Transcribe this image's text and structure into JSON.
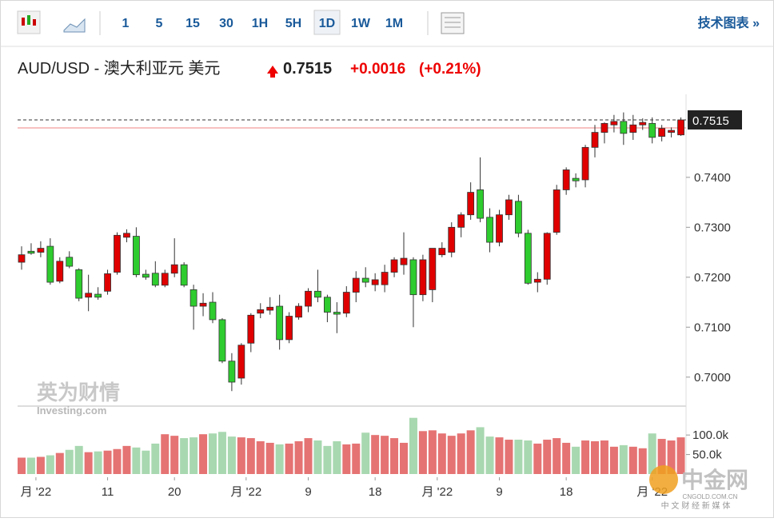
{
  "toolbar": {
    "intervals": [
      "1",
      "5",
      "15",
      "30",
      "1H",
      "5H",
      "1D",
      "1W",
      "1M"
    ],
    "active": "1D",
    "link": "技术图表 »"
  },
  "header": {
    "title": "AUD/USD - 澳大利亚元 美元",
    "change": "+0.0016",
    "change_pct": "(+0.21%)"
  },
  "watermark": {
    "brand": "英为财情",
    "site": "Investing.com"
  },
  "logo": {
    "name": "中金网",
    "domain": "CNGOLD.COM.CN",
    "slogan": "中 文 财 经 新 媒 体"
  },
  "chart_data": {
    "type": "candlestick",
    "current_price": 0.7515,
    "reference_line": 0.7499,
    "up_color": "#e00000",
    "down_color": "#2ecc2e",
    "volume_up_color": "#e57373",
    "volume_down_color": "#a8d8b0",
    "ylim": [
      0.6942,
      0.7563
    ],
    "yticks": [
      {
        "value": 0.74,
        "label": "0.7400"
      },
      {
        "value": 0.73,
        "label": "0.7300"
      },
      {
        "value": 0.72,
        "label": "0.7200"
      },
      {
        "value": 0.71,
        "label": "0.7100"
      },
      {
        "value": 0.7,
        "label": "0.7000"
      }
    ],
    "volume_ylim": [
      0,
      170000
    ],
    "volume_ticks": [
      {
        "value": 100000,
        "label": "100.0k"
      },
      {
        "value": 50000,
        "label": "50.0k"
      }
    ],
    "xticks": [
      {
        "value": 1.5,
        "label": "月 '22"
      },
      {
        "value": 9,
        "label": "11"
      },
      {
        "value": 16,
        "label": "20"
      },
      {
        "value": 23.5,
        "label": "月 '22"
      },
      {
        "value": 30,
        "label": "9"
      },
      {
        "value": 37,
        "label": "18"
      },
      {
        "value": 43.5,
        "label": "月 '22"
      },
      {
        "value": 50,
        "label": "9"
      },
      {
        "value": 57,
        "label": "18"
      },
      {
        "value": 66,
        "label": "月 '22"
      }
    ],
    "open": [
      0.723,
      0.7252,
      0.725,
      0.7262,
      0.7192,
      0.724,
      0.7215,
      0.716,
      0.7166,
      0.7172,
      0.721,
      0.728,
      0.7282,
      0.7206,
      0.7208,
      0.7184,
      0.7208,
      0.7225,
      0.7175,
      0.7142,
      0.715,
      0.7115,
      0.7032,
      0.6998,
      0.7068,
      0.7128,
      0.7134,
      0.7142,
      0.7075,
      0.712,
      0.7142,
      0.7172,
      0.716,
      0.713,
      0.7128,
      0.717,
      0.7198,
      0.7185,
      0.7185,
      0.721,
      0.7225,
      0.7235,
      0.7165,
      0.7175,
      0.7245,
      0.725,
      0.73,
      0.7325,
      0.7375,
      0.732,
      0.727,
      0.7325,
      0.7352,
      0.7288,
      0.719,
      0.7196,
      0.729,
      0.7375,
      0.7398,
      0.7395,
      0.746,
      0.749,
      0.7505,
      0.7512,
      0.749,
      0.7505,
      0.7508,
      0.7482,
      0.749,
      0.7485
    ],
    "high": [
      0.7262,
      0.7268,
      0.7272,
      0.7278,
      0.724,
      0.7252,
      0.7218,
      0.7205,
      0.718,
      0.7215,
      0.729,
      0.7296,
      0.73,
      0.7215,
      0.7232,
      0.7215,
      0.7278,
      0.723,
      0.7185,
      0.7168,
      0.717,
      0.7118,
      0.7048,
      0.7068,
      0.7128,
      0.7148,
      0.716,
      0.7165,
      0.713,
      0.7148,
      0.7178,
      0.7215,
      0.7165,
      0.715,
      0.7182,
      0.7212,
      0.722,
      0.7208,
      0.7225,
      0.724,
      0.729,
      0.724,
      0.7245,
      0.7258,
      0.727,
      0.731,
      0.733,
      0.739,
      0.744,
      0.7338,
      0.7335,
      0.7365,
      0.7365,
      0.7295,
      0.721,
      0.729,
      0.7385,
      0.742,
      0.7408,
      0.7465,
      0.7505,
      0.751,
      0.7525,
      0.753,
      0.7525,
      0.7518,
      0.752,
      0.7505,
      0.75,
      0.752
    ],
    "low": [
      0.7215,
      0.7245,
      0.724,
      0.7185,
      0.7188,
      0.7218,
      0.7152,
      0.7132,
      0.7155,
      0.7165,
      0.7205,
      0.727,
      0.72,
      0.7195,
      0.718,
      0.718,
      0.72,
      0.718,
      0.7095,
      0.7122,
      0.7108,
      0.7028,
      0.6972,
      0.6985,
      0.705,
      0.7118,
      0.7125,
      0.7055,
      0.7068,
      0.7115,
      0.713,
      0.715,
      0.711,
      0.7088,
      0.712,
      0.715,
      0.718,
      0.7172,
      0.717,
      0.72,
      0.7205,
      0.71,
      0.7152,
      0.715,
      0.724,
      0.724,
      0.728,
      0.7315,
      0.731,
      0.725,
      0.7262,
      0.7315,
      0.728,
      0.7185,
      0.717,
      0.7185,
      0.7285,
      0.7365,
      0.738,
      0.738,
      0.744,
      0.7468,
      0.749,
      0.7465,
      0.7475,
      0.7495,
      0.7468,
      0.7472,
      0.748,
      0.7483
    ],
    "close": [
      0.7245,
      0.7248,
      0.7258,
      0.719,
      0.7232,
      0.7222,
      0.7158,
      0.7168,
      0.716,
      0.7207,
      0.7284,
      0.7288,
      0.7205,
      0.72,
      0.7184,
      0.7208,
      0.7225,
      0.7184,
      0.7142,
      0.7148,
      0.7115,
      0.7032,
      0.699,
      0.7064,
      0.7124,
      0.7135,
      0.714,
      0.7075,
      0.7122,
      0.7142,
      0.7172,
      0.716,
      0.713,
      0.7126,
      0.717,
      0.7198,
      0.719,
      0.7195,
      0.721,
      0.7235,
      0.7238,
      0.7165,
      0.7235,
      0.7258,
      0.7258,
      0.73,
      0.7325,
      0.737,
      0.7318,
      0.727,
      0.7325,
      0.7355,
      0.7288,
      0.7188,
      0.7196,
      0.7288,
      0.7375,
      0.7415,
      0.7393,
      0.746,
      0.749,
      0.7508,
      0.7512,
      0.7488,
      0.7505,
      0.751,
      0.748,
      0.7498,
      0.7494,
      0.7515
    ],
    "volume": [
      42000,
      42000,
      44000,
      48000,
      54000,
      62000,
      72000,
      56000,
      58000,
      60000,
      64000,
      72000,
      68000,
      60000,
      78000,
      102000,
      98000,
      92000,
      94000,
      102000,
      104000,
      108000,
      96000,
      94000,
      92000,
      84000,
      80000,
      76000,
      78000,
      84000,
      92000,
      86000,
      72000,
      84000,
      76000,
      78000,
      106000,
      100000,
      98000,
      92000,
      80000,
      144000,
      110000,
      112000,
      104000,
      98000,
      104000,
      112000,
      120000,
      96000,
      94000,
      88000,
      88000,
      86000,
      78000,
      88000,
      92000,
      80000,
      70000,
      86000,
      84000,
      86000,
      70000,
      74000,
      70000,
      66000,
      104000,
      90000,
      86000,
      94000
    ]
  }
}
